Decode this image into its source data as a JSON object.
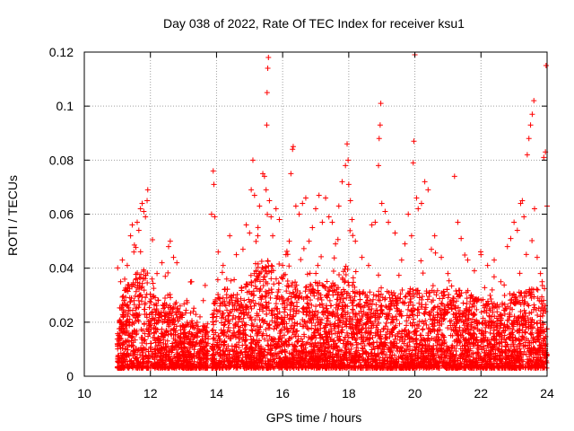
{
  "chart_data": {
    "type": "scatter",
    "title": "Day 038 of 2022, Rate Of TEC Index for receiver ksu1",
    "xlabel": "GPS time / hours",
    "ylabel": "ROTI / TECUs",
    "xlim": [
      10,
      24
    ],
    "ylim": [
      0,
      0.12
    ],
    "x_ticks": [
      "10",
      "12",
      "14",
      "16",
      "18",
      "20",
      "22",
      "24"
    ],
    "y_ticks": [
      "0",
      "0.02",
      "0.04",
      "0.06",
      "0.08",
      "0.1",
      "0.12"
    ],
    "grid": true,
    "marker": "+",
    "series_color": "#ff0000",
    "series": [
      {
        "points": [
          [
            11.0,
            0.012
          ],
          [
            11.1,
            0.035
          ],
          [
            11.15,
            0.043
          ],
          [
            11.2,
            0.028
          ],
          [
            11.3,
            0.041
          ],
          [
            11.4,
            0.052
          ],
          [
            11.45,
            0.056
          ],
          [
            11.5,
            0.046
          ],
          [
            11.6,
            0.057
          ],
          [
            11.65,
            0.054
          ],
          [
            11.7,
            0.062
          ],
          [
            11.75,
            0.064
          ],
          [
            11.8,
            0.061
          ],
          [
            11.9,
            0.065
          ],
          [
            11.92,
            0.069
          ],
          [
            11.85,
            0.059
          ],
          [
            12.05,
            0.036
          ],
          [
            12.2,
            0.038
          ],
          [
            12.35,
            0.042
          ],
          [
            12.45,
            0.037
          ],
          [
            12.55,
            0.048
          ],
          [
            12.6,
            0.05
          ],
          [
            12.7,
            0.044
          ],
          [
            12.8,
            0.042
          ],
          [
            12.9,
            0.026
          ],
          [
            13.1,
            0.028
          ],
          [
            13.3,
            0.024
          ],
          [
            13.5,
            0.022
          ],
          [
            13.6,
            0.028
          ],
          [
            13.7,
            0.018
          ],
          [
            13.85,
            0.06
          ],
          [
            13.9,
            0.076
          ],
          [
            13.92,
            0.071
          ],
          [
            13.95,
            0.059
          ],
          [
            14.05,
            0.046
          ],
          [
            14.2,
            0.041
          ],
          [
            14.4,
            0.052
          ],
          [
            14.6,
            0.045
          ],
          [
            14.8,
            0.047
          ],
          [
            14.9,
            0.056
          ],
          [
            15.0,
            0.053
          ],
          [
            15.05,
            0.069
          ],
          [
            15.1,
            0.08
          ],
          [
            15.15,
            0.067
          ],
          [
            15.25,
            0.052
          ],
          [
            15.3,
            0.063
          ],
          [
            15.4,
            0.075
          ],
          [
            15.45,
            0.074
          ],
          [
            15.5,
            0.069
          ],
          [
            15.52,
            0.093
          ],
          [
            15.53,
            0.105
          ],
          [
            15.55,
            0.114
          ],
          [
            15.57,
            0.118
          ],
          [
            15.6,
            0.065
          ],
          [
            15.65,
            0.059
          ],
          [
            15.7,
            0.052
          ],
          [
            15.8,
            0.062
          ],
          [
            15.9,
            0.058
          ],
          [
            16.0,
            0.041
          ],
          [
            16.1,
            0.045
          ],
          [
            16.2,
            0.05
          ],
          [
            16.25,
            0.075
          ],
          [
            16.3,
            0.084
          ],
          [
            16.32,
            0.085
          ],
          [
            16.4,
            0.063
          ],
          [
            16.5,
            0.06
          ],
          [
            16.6,
            0.064
          ],
          [
            16.7,
            0.066
          ],
          [
            16.8,
            0.05
          ],
          [
            16.9,
            0.055
          ],
          [
            17.0,
            0.062
          ],
          [
            17.1,
            0.067
          ],
          [
            17.2,
            0.057
          ],
          [
            17.3,
            0.066
          ],
          [
            17.4,
            0.059
          ],
          [
            17.5,
            0.057
          ],
          [
            17.6,
            0.049
          ],
          [
            17.7,
            0.063
          ],
          [
            17.8,
            0.072
          ],
          [
            17.9,
            0.078
          ],
          [
            17.95,
            0.086
          ],
          [
            17.98,
            0.08
          ],
          [
            18.0,
            0.071
          ],
          [
            18.05,
            0.065
          ],
          [
            18.1,
            0.058
          ],
          [
            18.2,
            0.05
          ],
          [
            18.4,
            0.044
          ],
          [
            18.6,
            0.041
          ],
          [
            18.7,
            0.056
          ],
          [
            18.8,
            0.057
          ],
          [
            18.9,
            0.078
          ],
          [
            18.92,
            0.088
          ],
          [
            18.95,
            0.093
          ],
          [
            18.97,
            0.101
          ],
          [
            19.0,
            0.064
          ],
          [
            19.1,
            0.061
          ],
          [
            19.2,
            0.057
          ],
          [
            19.4,
            0.053
          ],
          [
            19.6,
            0.043
          ],
          [
            19.7,
            0.049
          ],
          [
            19.8,
            0.06
          ],
          [
            19.9,
            0.052
          ],
          [
            19.95,
            0.079
          ],
          [
            19.97,
            0.087
          ],
          [
            20.0,
            0.119
          ],
          [
            20.05,
            0.066
          ],
          [
            20.1,
            0.062
          ],
          [
            20.2,
            0.064
          ],
          [
            20.3,
            0.072
          ],
          [
            20.4,
            0.069
          ],
          [
            20.5,
            0.047
          ],
          [
            20.6,
            0.052
          ],
          [
            20.8,
            0.044
          ],
          [
            21.0,
            0.038
          ],
          [
            21.2,
            0.074
          ],
          [
            21.3,
            0.057
          ],
          [
            21.4,
            0.051
          ],
          [
            21.6,
            0.043
          ],
          [
            21.8,
            0.039
          ],
          [
            22.0,
            0.045
          ],
          [
            22.2,
            0.041
          ],
          [
            22.4,
            0.043
          ],
          [
            22.6,
            0.035
          ],
          [
            22.8,
            0.048
          ],
          [
            22.9,
            0.051
          ],
          [
            23.0,
            0.057
          ],
          [
            23.1,
            0.054
          ],
          [
            23.2,
            0.064
          ],
          [
            23.25,
            0.065
          ],
          [
            23.3,
            0.059
          ],
          [
            23.4,
            0.082
          ],
          [
            23.45,
            0.088
          ],
          [
            23.5,
            0.093
          ],
          [
            23.55,
            0.097
          ],
          [
            23.6,
            0.102
          ],
          [
            23.62,
            0.062
          ],
          [
            23.7,
            0.044
          ],
          [
            23.8,
            0.038
          ],
          [
            23.85,
            0.035
          ],
          [
            23.9,
            0.081
          ],
          [
            23.95,
            0.083
          ],
          [
            23.97,
            0.115
          ],
          [
            24.0,
            0.063
          ]
        ],
        "band_profile": [
          [
            11.0,
            0.018
          ],
          [
            11.2,
            0.025
          ],
          [
            11.5,
            0.03
          ],
          [
            11.8,
            0.032
          ],
          [
            12.0,
            0.03
          ],
          [
            12.3,
            0.022
          ],
          [
            12.6,
            0.024
          ],
          [
            12.9,
            0.018
          ],
          [
            13.2,
            0.016
          ],
          [
            13.5,
            0.015
          ],
          [
            13.7,
            0.014
          ],
          [
            14.0,
            0.024
          ],
          [
            14.3,
            0.026
          ],
          [
            14.6,
            0.025
          ],
          [
            14.9,
            0.028
          ],
          [
            15.2,
            0.034
          ],
          [
            15.5,
            0.036
          ],
          [
            15.8,
            0.033
          ],
          [
            16.1,
            0.027
          ],
          [
            16.4,
            0.028
          ],
          [
            16.7,
            0.027
          ],
          [
            17.0,
            0.028
          ],
          [
            17.3,
            0.028
          ],
          [
            17.6,
            0.03
          ],
          [
            17.9,
            0.033
          ],
          [
            18.2,
            0.028
          ],
          [
            18.5,
            0.024
          ],
          [
            18.8,
            0.026
          ],
          [
            19.1,
            0.026
          ],
          [
            19.4,
            0.024
          ],
          [
            19.7,
            0.025
          ],
          [
            20.0,
            0.026
          ],
          [
            20.3,
            0.024
          ],
          [
            20.6,
            0.026
          ],
          [
            20.9,
            0.026
          ],
          [
            21.2,
            0.025
          ],
          [
            21.5,
            0.026
          ],
          [
            21.8,
            0.023
          ],
          [
            22.1,
            0.022
          ],
          [
            22.4,
            0.021
          ],
          [
            22.7,
            0.022
          ],
          [
            23.0,
            0.024
          ],
          [
            23.3,
            0.025
          ],
          [
            23.6,
            0.026
          ],
          [
            23.9,
            0.024
          ],
          [
            24.0,
            0.018
          ]
        ],
        "gaps": [
          [
            13.75,
            13.85
          ]
        ]
      }
    ]
  }
}
